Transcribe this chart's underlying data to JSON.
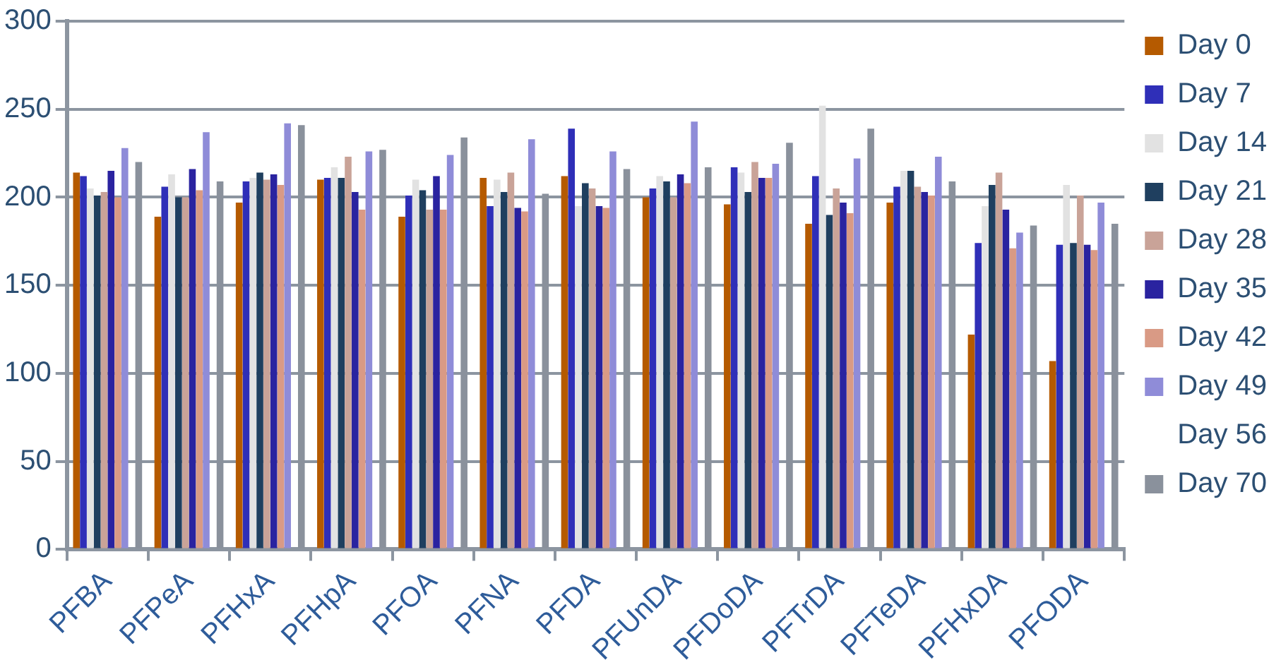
{
  "chart_data": {
    "type": "bar",
    "categories": [
      "PFBA",
      "PFPeA",
      "PFHxA",
      "PFHpA",
      "PFOA",
      "PFNA",
      "PFDA",
      "PFUnDA",
      "PFDoDA",
      "PFTrDA",
      "PFTeDA",
      "PFHxDA",
      "PFODA"
    ],
    "series": [
      {
        "name": "Day 0",
        "color": "#b55a00",
        "values": [
          214,
          189,
          197,
          210,
          189,
          211,
          212,
          200,
          196,
          185,
          197,
          122,
          107
        ]
      },
      {
        "name": "Day 7",
        "color": "#2f2fb8",
        "values": [
          212,
          206,
          209,
          211,
          201,
          195,
          239,
          205,
          217,
          212,
          206,
          174,
          173
        ]
      },
      {
        "name": "Day 14",
        "color": "#e2e2e2",
        "values": [
          205,
          213,
          211,
          217,
          210,
          210,
          195,
          212,
          214,
          252,
          215,
          195,
          207
        ]
      },
      {
        "name": "Day 21",
        "color": "#1f3f5f",
        "values": [
          201,
          200,
          214,
          211,
          204,
          203,
          208,
          209,
          203,
          190,
          215,
          207,
          174
        ]
      },
      {
        "name": "Day 28",
        "color": "#c9a398",
        "values": [
          203,
          200,
          210,
          223,
          193,
          214,
          205,
          200,
          220,
          205,
          206,
          214,
          201
        ]
      },
      {
        "name": "Day 35",
        "color": "#2a23a0",
        "values": [
          215,
          216,
          213,
          203,
          212,
          194,
          195,
          213,
          211,
          197,
          203,
          193,
          173
        ]
      },
      {
        "name": "Day 42",
        "color": "#d99a85",
        "values": [
          200,
          204,
          207,
          193,
          193,
          192,
          194,
          208,
          211,
          191,
          201,
          171,
          170
        ]
      },
      {
        "name": "Day 49",
        "color": "#8f8cd8",
        "values": [
          228,
          237,
          242,
          226,
          224,
          233,
          226,
          243,
          219,
          222,
          223,
          180,
          197
        ]
      },
      {
        "name": "Day 56",
        "values": [
          null,
          null,
          null,
          null,
          null,
          null,
          null,
          null,
          null,
          null,
          null,
          null,
          null
        ]
      },
      {
        "name": "Day 70",
        "color": "#8a919c",
        "values": [
          220,
          209,
          241,
          227,
          234,
          202,
          216,
          217,
          231,
          239,
          209,
          184,
          185
        ]
      }
    ],
    "ylim": [
      0,
      300
    ],
    "yticks": [
      0,
      50,
      100,
      150,
      200,
      250,
      300
    ],
    "grid": "y",
    "legend": "right"
  }
}
